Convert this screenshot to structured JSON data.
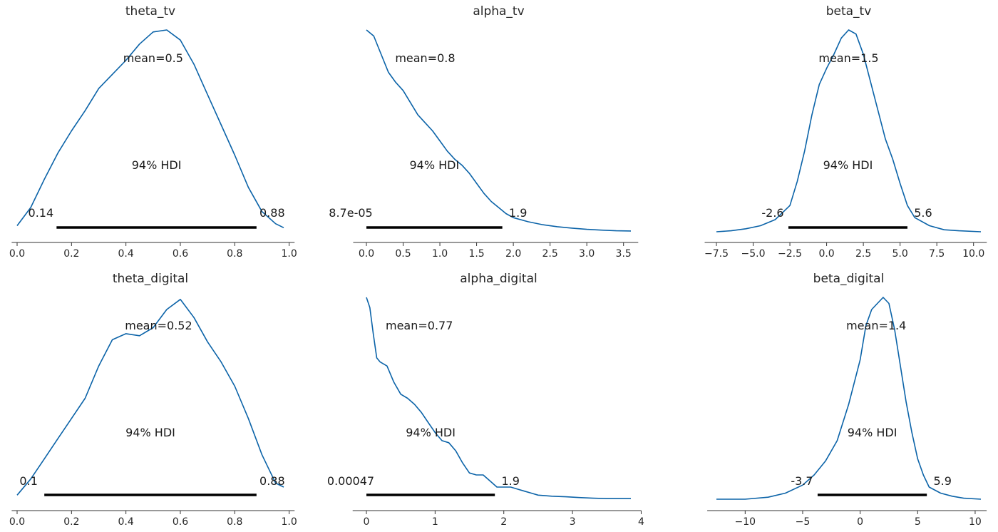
{
  "chart_data": [
    {
      "type": "line",
      "title": "theta_tv",
      "mean_label": "mean=0.5",
      "hdi_label": "94% HDI",
      "hdi_low_label": "0.14",
      "hdi_high_label": "0.88",
      "hdi": [
        0.145,
        0.88
      ],
      "xlim": [
        -0.02,
        1.02
      ],
      "ticks": [
        0.0,
        0.2,
        0.4,
        0.6,
        0.8,
        1.0
      ],
      "tick_labels": [
        "0.0",
        "0.2",
        "0.4",
        "0.6",
        "0.8",
        "1.0"
      ],
      "density": {
        "x": [
          0.0,
          0.05,
          0.1,
          0.15,
          0.2,
          0.25,
          0.3,
          0.35,
          0.4,
          0.45,
          0.5,
          0.55,
          0.6,
          0.65,
          0.7,
          0.75,
          0.8,
          0.85,
          0.9,
          0.95,
          0.98
        ],
        "y": [
          0.03,
          0.12,
          0.26,
          0.39,
          0.5,
          0.6,
          0.71,
          0.78,
          0.85,
          0.93,
          0.99,
          1.0,
          0.95,
          0.83,
          0.68,
          0.53,
          0.38,
          0.22,
          0.1,
          0.04,
          0.02
        ]
      }
    },
    {
      "type": "line",
      "title": "alpha_tv",
      "mean_label": "mean=0.8",
      "hdi_label": "94% HDI",
      "hdi_low_label": "8.7e-05",
      "hdi_high_label": "1.9",
      "hdi": [
        0.0,
        1.85
      ],
      "xlim": [
        -0.18,
        3.7
      ],
      "ticks": [
        0.0,
        0.5,
        1.0,
        1.5,
        2.0,
        2.5,
        3.0,
        3.5
      ],
      "tick_labels": [
        "0.0",
        "0.5",
        "1.0",
        "1.5",
        "2.0",
        "2.5",
        "3.0",
        "3.5"
      ],
      "density": {
        "x": [
          0.0,
          0.1,
          0.2,
          0.3,
          0.4,
          0.5,
          0.6,
          0.7,
          0.8,
          0.9,
          1.0,
          1.1,
          1.2,
          1.3,
          1.4,
          1.5,
          1.6,
          1.7,
          1.8,
          1.9,
          2.0,
          2.2,
          2.4,
          2.6,
          2.8,
          3.0,
          3.2,
          3.4,
          3.6
        ],
        "y": [
          1.0,
          0.97,
          0.88,
          0.79,
          0.74,
          0.7,
          0.64,
          0.58,
          0.54,
          0.5,
          0.45,
          0.4,
          0.36,
          0.33,
          0.29,
          0.24,
          0.19,
          0.15,
          0.12,
          0.09,
          0.07,
          0.05,
          0.035,
          0.025,
          0.018,
          0.012,
          0.008,
          0.005,
          0.004
        ]
      }
    },
    {
      "type": "line",
      "title": "beta_tv",
      "mean_label": "mean=1.5",
      "hdi_label": "94% HDI",
      "hdi_low_label": "-2.6",
      "hdi_high_label": "5.6",
      "hdi": [
        -2.6,
        5.5
      ],
      "xlim": [
        -8.3,
        10.9
      ],
      "ticks": [
        -7.5,
        -5.0,
        -2.5,
        0.0,
        2.5,
        5.0,
        7.5,
        10.0
      ],
      "tick_labels": [
        "−7.5",
        "−5.0",
        "−2.5",
        "0.0",
        "2.5",
        "5.0",
        "7.5",
        "10.0"
      ],
      "density": {
        "x": [
          -7.5,
          -6.5,
          -5.5,
          -4.5,
          -3.5,
          -2.5,
          -2.0,
          -1.5,
          -1.0,
          -0.5,
          0.0,
          0.5,
          1.0,
          1.5,
          2.0,
          2.5,
          3.0,
          3.5,
          4.0,
          4.5,
          5.0,
          5.5,
          6.0,
          7.0,
          8.0,
          9.0,
          10.5
        ],
        "y": [
          0.0,
          0.005,
          0.015,
          0.03,
          0.06,
          0.13,
          0.25,
          0.4,
          0.58,
          0.73,
          0.81,
          0.88,
          0.96,
          1.0,
          0.98,
          0.88,
          0.74,
          0.6,
          0.46,
          0.36,
          0.24,
          0.13,
          0.07,
          0.03,
          0.01,
          0.005,
          0.0
        ]
      }
    },
    {
      "type": "line",
      "title": "theta_digital",
      "mean_label": "mean=0.52",
      "hdi_label": "94% HDI",
      "hdi_low_label": "0.1",
      "hdi_high_label": "0.88",
      "hdi": [
        0.1,
        0.88
      ],
      "xlim": [
        -0.02,
        1.02
      ],
      "ticks": [
        0.0,
        0.2,
        0.4,
        0.6,
        0.8,
        1.0
      ],
      "tick_labels": [
        "0.0",
        "0.2",
        "0.4",
        "0.6",
        "0.8",
        "1.0"
      ],
      "density": {
        "x": [
          0.0,
          0.05,
          0.1,
          0.15,
          0.2,
          0.25,
          0.3,
          0.35,
          0.4,
          0.45,
          0.5,
          0.55,
          0.6,
          0.65,
          0.7,
          0.75,
          0.8,
          0.85,
          0.9,
          0.95,
          0.98
        ],
        "y": [
          0.02,
          0.1,
          0.2,
          0.3,
          0.4,
          0.5,
          0.66,
          0.79,
          0.82,
          0.81,
          0.85,
          0.94,
          0.99,
          0.9,
          0.78,
          0.68,
          0.56,
          0.4,
          0.22,
          0.08,
          0.06
        ]
      }
    },
    {
      "type": "line",
      "title": "alpha_digital",
      "mean_label": "mean=0.77",
      "hdi_label": "94% HDI",
      "hdi_low_label": "0.00047",
      "hdi_high_label": "1.9",
      "hdi": [
        0.0,
        1.87
      ],
      "xlim": [
        -0.2,
        4.0
      ],
      "ticks": [
        0,
        1,
        2,
        3,
        4
      ],
      "tick_labels": [
        "0",
        "1",
        "2",
        "3",
        "4"
      ],
      "density": {
        "x": [
          0.0,
          0.05,
          0.1,
          0.15,
          0.2,
          0.3,
          0.4,
          0.5,
          0.6,
          0.7,
          0.8,
          0.9,
          1.0,
          1.1,
          1.2,
          1.3,
          1.4,
          1.5,
          1.6,
          1.7,
          1.8,
          1.9,
          2.0,
          2.1,
          2.2,
          2.3,
          2.4,
          2.5,
          2.7,
          2.9,
          3.1,
          3.3,
          3.5,
          3.7,
          3.85
        ],
        "y": [
          1.0,
          0.95,
          0.82,
          0.7,
          0.68,
          0.66,
          0.58,
          0.52,
          0.5,
          0.47,
          0.43,
          0.38,
          0.33,
          0.29,
          0.28,
          0.24,
          0.18,
          0.13,
          0.12,
          0.12,
          0.09,
          0.06,
          0.06,
          0.06,
          0.05,
          0.04,
          0.03,
          0.02,
          0.015,
          0.012,
          0.008,
          0.005,
          0.003,
          0.003,
          0.003
        ]
      }
    },
    {
      "type": "line",
      "title": "beta_digital",
      "mean_label": "mean=1.4",
      "hdi_label": "94% HDI",
      "hdi_low_label": "-3.7",
      "hdi_high_label": "5.9",
      "hdi": [
        -3.7,
        5.8
      ],
      "xlim": [
        -13.3,
        11.0
      ],
      "ticks": [
        -10,
        -5,
        0,
        5,
        10
      ],
      "tick_labels": [
        "−10",
        "−5",
        "0",
        "5",
        "10"
      ],
      "density": {
        "x": [
          -12.5,
          -10.0,
          -8.0,
          -6.5,
          -5.0,
          -4.0,
          -3.0,
          -2.0,
          -1.0,
          0.0,
          0.5,
          1.0,
          1.5,
          2.0,
          2.5,
          3.0,
          3.5,
          4.0,
          4.5,
          5.0,
          5.5,
          6.0,
          7.0,
          8.0,
          9.0,
          10.5
        ],
        "y": [
          0.0,
          0.0,
          0.01,
          0.03,
          0.07,
          0.12,
          0.19,
          0.29,
          0.47,
          0.69,
          0.86,
          0.94,
          0.97,
          1.0,
          0.97,
          0.84,
          0.66,
          0.48,
          0.33,
          0.2,
          0.12,
          0.06,
          0.03,
          0.015,
          0.005,
          0.0
        ]
      }
    }
  ]
}
